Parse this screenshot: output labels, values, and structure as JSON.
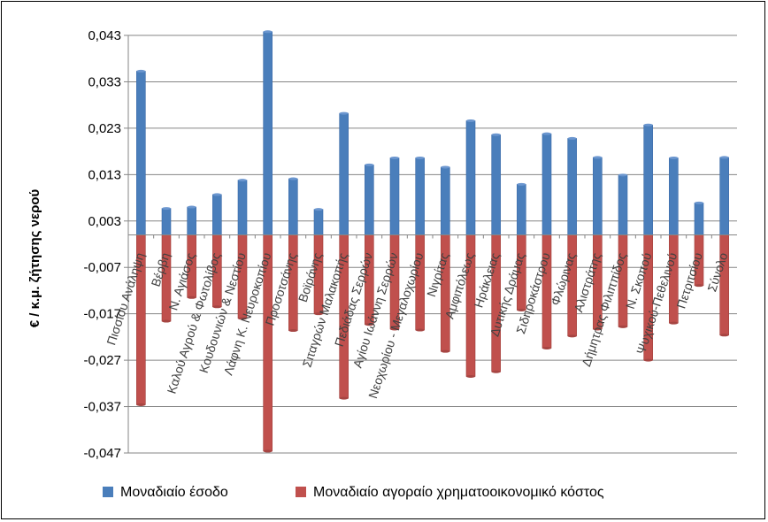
{
  "chart_data": {
    "type": "bar",
    "title": "",
    "xlabel": "",
    "ylabel": "€ / κ.μ. ζήτησης νερού",
    "ylim": [
      -0.047,
      0.043
    ],
    "yticks": [
      "0,043",
      "0,033",
      "0,023",
      "0,013",
      "0,003",
      "-0,007",
      "-0,017",
      "-0,027",
      "-0,037",
      "-0,047"
    ],
    "grid": true,
    "legend_position": "bottom",
    "colors": {
      "income": "#4a7ebb",
      "cost": "#c0504d",
      "grid": "#868686",
      "axis": "#868686"
    },
    "categories": [
      "Πισσίου Ανάληψη",
      "Βέρβη",
      "Ν. Αγιάσος",
      "Καλού Αγρού & Φωτολίβος",
      "Κουδουνιών & Νεστίου",
      "Λάφνη Κ. Νευροκοπίου",
      "Προσοτσάνης",
      "Βοϊράνης",
      "Σιταγρών Μαλακοπής",
      "Πεδιάδας Σερρών",
      "Αγίου Ιωάννη Σερρών",
      "Νεοχωρίου - Μεγαλοχωρίου",
      "Νιγρίτας",
      "Αμφιπόλεως",
      "Ηράκλειας",
      "Δυτικής Δράμας",
      "Σιδηροκάστρου",
      "Φλώρινας",
      "Αλιστράτης",
      "Δήμητρας Φιλιππίδος",
      "Ν. Σκοπού",
      "Ψυχικού-Πεθελινού",
      "Πετριτσίου",
      "Σύνολο"
    ],
    "series": [
      {
        "name": "Μοναδιαίο έσοδο",
        "values": [
          0.0353,
          0.0057,
          0.006,
          0.0087,
          0.0118,
          0.0438,
          0.0121,
          0.0055,
          0.0262,
          0.0151,
          0.0166,
          0.0166,
          0.0146,
          0.0246,
          0.0216,
          0.0109,
          0.0218,
          0.0208,
          0.0167,
          0.0129,
          0.0237,
          0.0166,
          0.0069,
          0.0167
        ]
      },
      {
        "name": "Μοναδιαίο αγοραίο χρηματοοικονομικό κόστος",
        "values": [
          -0.0366,
          -0.0186,
          -0.0135,
          -0.0155,
          -0.018,
          -0.0466,
          -0.0206,
          -0.017,
          -0.0352,
          -0.0193,
          -0.0203,
          -0.0205,
          -0.0251,
          -0.0305,
          -0.0295,
          -0.0162,
          -0.0244,
          -0.0218,
          -0.0203,
          -0.0198,
          -0.027,
          -0.019,
          -0.0109,
          -0.0216
        ]
      }
    ]
  }
}
